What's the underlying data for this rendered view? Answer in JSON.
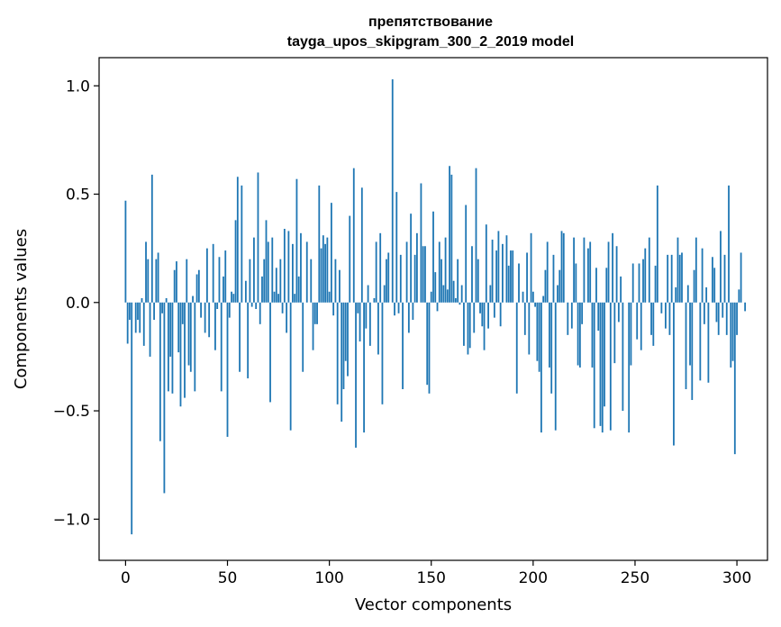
{
  "chart_data": {
    "type": "bar",
    "title_line1": "препятствование",
    "title_line2": "tayga_upos_skipgram_300_2_2019 model",
    "xlabel": "Vector components",
    "ylabel": "Components values",
    "xlim": [
      -13,
      315
    ],
    "ylim": [
      -1.19,
      1.13
    ],
    "xticks": [
      0,
      50,
      100,
      150,
      200,
      250,
      300
    ],
    "xtick_labels": [
      "0",
      "50",
      "100",
      "150",
      "200",
      "250",
      "300"
    ],
    "yticks": [
      -1.0,
      -0.5,
      0.0,
      0.5,
      1.0
    ],
    "ytick_labels": [
      "−1.0",
      "−0.5",
      "0.0",
      "0.5",
      "1.0"
    ],
    "grid": false,
    "bar_color": "#1f77b4",
    "values": [
      0.47,
      -0.19,
      -0.08,
      -1.07,
      0.0,
      -0.14,
      -0.08,
      -0.14,
      0.02,
      -0.2,
      0.28,
      0.2,
      -0.25,
      0.59,
      -0.08,
      0.2,
      0.23,
      -0.64,
      -0.05,
      -0.88,
      0.02,
      -0.41,
      -0.25,
      -0.42,
      0.15,
      0.19,
      -0.23,
      -0.48,
      -0.1,
      -0.44,
      0.2,
      -0.29,
      -0.32,
      0.03,
      -0.41,
      0.13,
      0.15,
      -0.07,
      0.0,
      -0.14,
      0.25,
      -0.16,
      0.0,
      0.27,
      -0.22,
      -0.03,
      0.21,
      -0.41,
      0.12,
      0.24,
      -0.62,
      -0.07,
      0.05,
      0.04,
      0.38,
      0.58,
      -0.32,
      0.54,
      0.0,
      0.1,
      -0.35,
      0.2,
      -0.02,
      0.3,
      -0.03,
      0.6,
      -0.1,
      0.12,
      0.2,
      0.38,
      0.28,
      -0.46,
      0.3,
      0.05,
      0.16,
      0.04,
      0.2,
      -0.05,
      0.34,
      -0.14,
      0.33,
      -0.59,
      0.27,
      0.04,
      0.57,
      0.12,
      0.32,
      -0.32,
      0.0,
      0.28,
      0.0,
      0.2,
      -0.22,
      -0.1,
      -0.1,
      0.54,
      0.25,
      0.31,
      0.27,
      0.3,
      0.05,
      0.46,
      -0.06,
      0.2,
      -0.47,
      0.15,
      -0.55,
      -0.4,
      -0.27,
      -0.34,
      0.4,
      0.0,
      0.62,
      -0.67,
      -0.05,
      -0.18,
      0.53,
      -0.6,
      -0.12,
      0.08,
      -0.2,
      0.0,
      0.02,
      0.28,
      -0.24,
      0.32,
      -0.47,
      0.08,
      0.2,
      0.23,
      0.0,
      1.03,
      -0.06,
      0.51,
      -0.05,
      0.22,
      -0.4,
      0.0,
      0.28,
      -0.14,
      0.41,
      -0.08,
      0.22,
      0.32,
      0.0,
      0.55,
      0.26,
      0.26,
      -0.38,
      -0.42,
      0.05,
      0.42,
      0.14,
      -0.04,
      0.28,
      0.2,
      0.08,
      0.3,
      0.06,
      0.63,
      0.59,
      0.1,
      0.02,
      0.2,
      -0.01,
      0.08,
      -0.2,
      0.45,
      -0.24,
      -0.21,
      0.26,
      -0.14,
      0.62,
      0.2,
      -0.05,
      -0.11,
      -0.22,
      0.36,
      -0.12,
      0.08,
      0.29,
      -0.07,
      0.24,
      0.33,
      -0.11,
      0.27,
      0.0,
      0.31,
      0.17,
      0.24,
      0.24,
      0.0,
      -0.42,
      0.18,
      0.0,
      0.05,
      -0.15,
      0.23,
      -0.24,
      0.32,
      0.05,
      -0.02,
      -0.27,
      -0.32,
      -0.6,
      0.03,
      0.15,
      0.28,
      -0.3,
      -0.42,
      0.22,
      -0.59,
      0.08,
      0.15,
      0.33,
      0.32,
      0.0,
      -0.15,
      0.0,
      -0.12,
      0.3,
      0.18,
      -0.29,
      -0.3,
      -0.1,
      0.3,
      0.0,
      0.25,
      0.28,
      -0.3,
      -0.58,
      0.16,
      -0.13,
      -0.57,
      -0.6,
      -0.48,
      0.16,
      0.28,
      -0.59,
      0.32,
      -0.28,
      0.26,
      -0.09,
      0.12,
      -0.5,
      0.0,
      0.0,
      -0.6,
      -0.29,
      0.18,
      0.0,
      -0.17,
      0.18,
      -0.22,
      0.2,
      0.25,
      0.0,
      0.3,
      -0.15,
      -0.2,
      0.17,
      0.54,
      0.0,
      -0.05,
      0.0,
      -0.12,
      0.22,
      -0.15,
      0.22,
      -0.66,
      0.07,
      0.3,
      0.22,
      0.23,
      0.0,
      -0.4,
      0.08,
      -0.29,
      -0.45,
      0.15,
      0.3,
      0.0,
      -0.36,
      0.25,
      -0.1,
      0.07,
      -0.37,
      0.0,
      0.21,
      0.16,
      -0.09,
      -0.15,
      0.33,
      -0.07,
      0.22,
      -0.15,
      0.54,
      -0.3,
      -0.27,
      -0.7,
      -0.15,
      0.06,
      0.23,
      0.0,
      -0.04,
      0.0
    ]
  }
}
